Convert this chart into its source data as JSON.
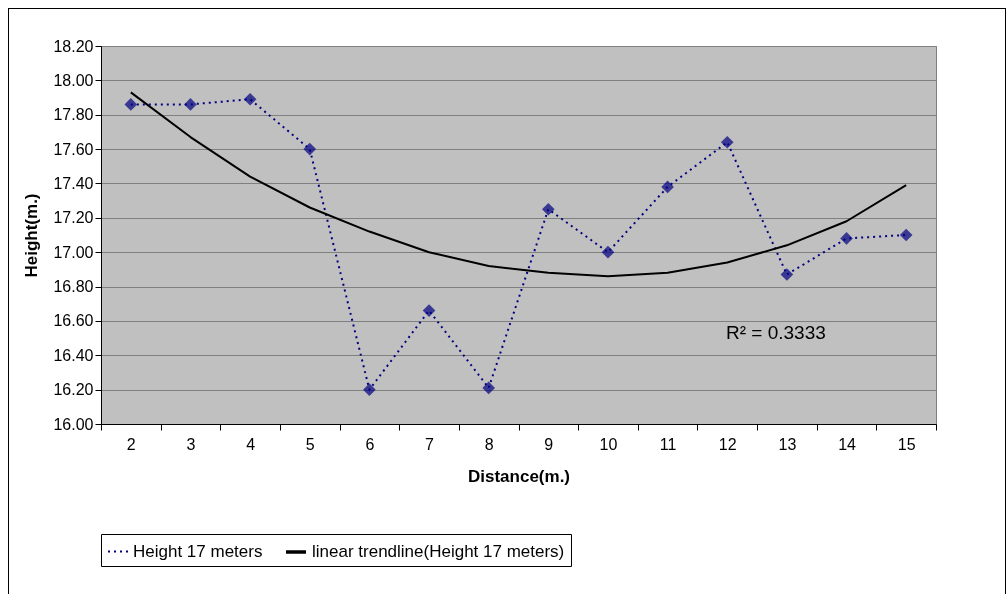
{
  "chart_data": {
    "type": "line",
    "xlabel": "Distance(m.)",
    "ylabel": "Height(m.)",
    "categories": [
      "2",
      "3",
      "4",
      "5",
      "6",
      "7",
      "8",
      "9",
      "10",
      "11",
      "12",
      "13",
      "14",
      "15"
    ],
    "series": [
      {
        "name": "Height 17 meters",
        "color": "#000080",
        "marker": "diamond",
        "line_style": "dotted",
        "values": [
          17.86,
          17.86,
          17.89,
          17.6,
          16.2,
          16.66,
          16.21,
          17.25,
          17.0,
          17.38,
          17.64,
          16.87,
          17.08,
          17.1
        ]
      },
      {
        "name": "linear trendline(Height 17 meters)",
        "color": "#000000",
        "marker": "none",
        "line_style": "solid",
        "values": [
          17.93,
          17.67,
          17.44,
          17.26,
          17.12,
          17.0,
          16.92,
          16.88,
          16.86,
          16.88,
          16.94,
          17.04,
          17.18,
          17.39
        ]
      }
    ],
    "ylim": [
      16.0,
      18.2
    ],
    "yticks": [
      {
        "value": 16.0,
        "label": "16.00"
      },
      {
        "value": 16.2,
        "label": "16.20"
      },
      {
        "value": 16.4,
        "label": "16.40"
      },
      {
        "value": 16.6,
        "label": "16.60"
      },
      {
        "value": 16.8,
        "label": "16.80"
      },
      {
        "value": 17.0,
        "label": "17.00"
      },
      {
        "value": 17.2,
        "label": "17.20"
      },
      {
        "value": 17.4,
        "label": "17.40"
      },
      {
        "value": 17.6,
        "label": "17.60"
      },
      {
        "value": 17.8,
        "label": "17.80"
      },
      {
        "value": 18.0,
        "label": "18.00"
      },
      {
        "value": 18.2,
        "label": "18.20"
      }
    ],
    "grid": "y",
    "legend": "bottom",
    "annotations": [
      "R² = 0.3333"
    ]
  }
}
